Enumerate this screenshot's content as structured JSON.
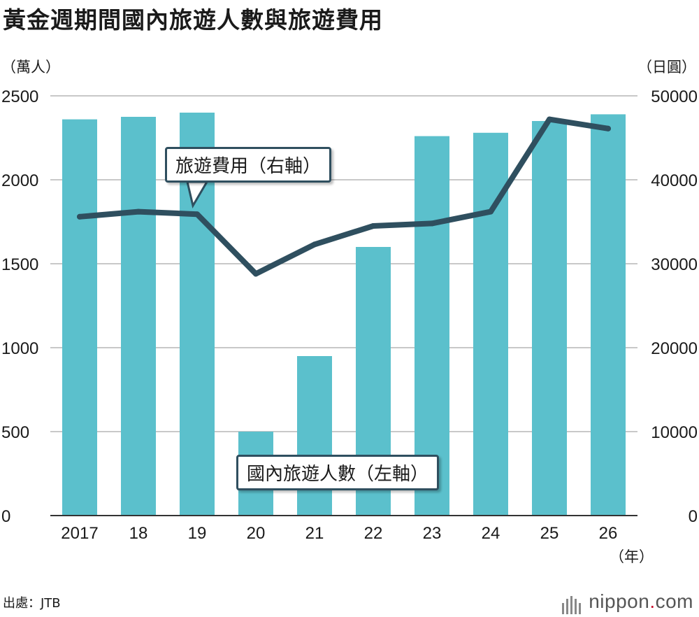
{
  "title": "黃金週期間國內旅遊人數與旅遊費用",
  "source": "出處：JTB",
  "logo": {
    "text_main": "nippon",
    "text_dot": ".",
    "text_tld": "com"
  },
  "chart_data": {
    "type": "bar",
    "categories": [
      "2017",
      "18",
      "19",
      "20",
      "21",
      "22",
      "23",
      "24",
      "25",
      "26"
    ],
    "series": [
      {
        "name": "國內旅遊人數（左軸）",
        "type": "bar",
        "axis": "left",
        "values": [
          2360,
          2375,
          2400,
          500,
          950,
          1600,
          2260,
          2280,
          2350,
          2390
        ]
      },
      {
        "name": "旅遊費用（右軸）",
        "type": "line",
        "axis": "right",
        "values": [
          35600,
          36200,
          35900,
          28800,
          32300,
          34500,
          34800,
          36200,
          47200,
          46100
        ]
      }
    ],
    "left_axis": {
      "label": "（萬人）",
      "ylim": [
        0,
        2500
      ],
      "ticks": [
        0,
        500,
        1000,
        1500,
        2000,
        2500
      ]
    },
    "right_axis": {
      "label": "（日圓）",
      "ylim": [
        0,
        50000
      ],
      "ticks": [
        0,
        10000,
        20000,
        30000,
        40000,
        50000
      ]
    },
    "xlabel": "（年）",
    "annotations": [
      "旅遊費用（右軸）",
      "國內旅遊人數（左軸）"
    ],
    "colors": {
      "bar": "#5bc0cc",
      "line": "#2f4f5f",
      "grid": "#b5b5b5"
    }
  }
}
